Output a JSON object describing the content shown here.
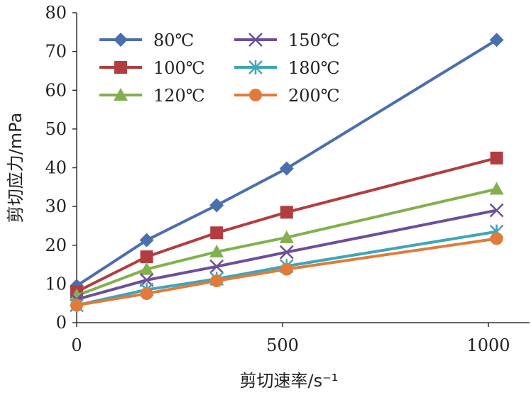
{
  "chart_data": {
    "type": "line",
    "xlabel": "剪切速率/s⁻¹",
    "ylabel": "剪切应力/mPa",
    "xlim": [
      0,
      1100
    ],
    "ylim": [
      0,
      80
    ],
    "x_ticks": [
      "0",
      "500",
      "1000"
    ],
    "y_ticks": [
      "0",
      "10",
      "20",
      "30",
      "40",
      "50",
      "60",
      "70",
      "80"
    ],
    "x": [
      0,
      170,
      340,
      510,
      1020
    ],
    "legend_placement": "top-left",
    "grid": false,
    "series": [
      {
        "name": "80℃",
        "color": "#4a6fad",
        "marker": "diamond",
        "values": [
          9.5,
          21.3,
          30.3,
          39.8,
          73.0
        ]
      },
      {
        "name": "100℃",
        "color": "#b23d40",
        "marker": "square",
        "values": [
          8.0,
          17.0,
          23.2,
          28.5,
          42.5
        ]
      },
      {
        "name": "120℃",
        "color": "#83b04e",
        "marker": "triangle",
        "values": [
          7.0,
          13.8,
          18.3,
          22.0,
          34.5
        ]
      },
      {
        "name": "150℃",
        "color": "#6c4f9a",
        "marker": "x",
        "values": [
          6.0,
          11.0,
          14.5,
          18.2,
          29.0
        ]
      },
      {
        "name": "180℃",
        "color": "#3fa5b8",
        "marker": "star",
        "values": [
          4.5,
          8.5,
          11.3,
          14.6,
          23.5
        ]
      },
      {
        "name": "200℃",
        "color": "#e07b3c",
        "marker": "circle",
        "values": [
          4.5,
          7.5,
          10.8,
          13.8,
          21.7
        ]
      }
    ]
  }
}
